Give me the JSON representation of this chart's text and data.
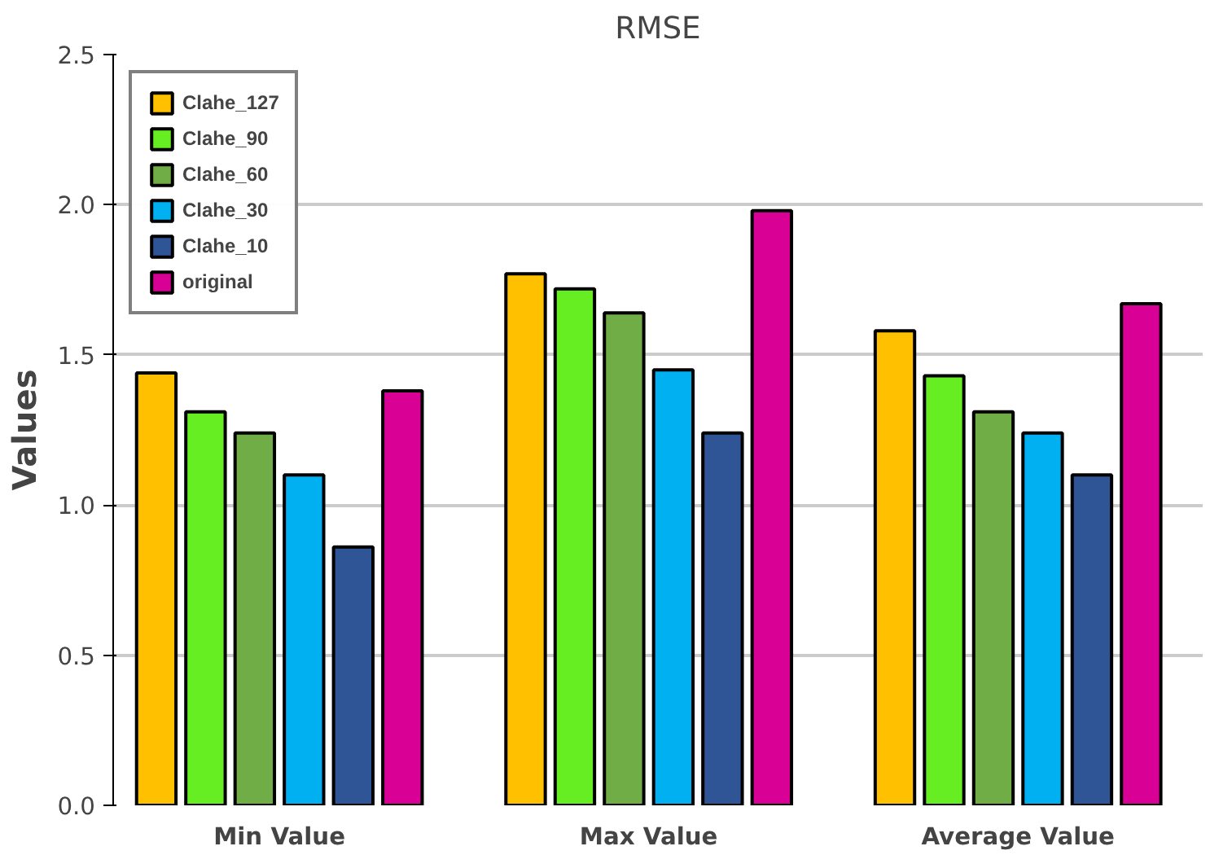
{
  "chart_data": {
    "type": "bar",
    "title": "RMSE",
    "ylabel": "Values",
    "categories": [
      "Min Value",
      "Max Value",
      "Average Value"
    ],
    "series": [
      {
        "name": "Clahe_127",
        "color": "#ffc000",
        "values": [
          1.44,
          1.77,
          1.58
        ]
      },
      {
        "name": "Clahe_90",
        "color": "#66ee22",
        "values": [
          1.31,
          1.72,
          1.43
        ]
      },
      {
        "name": "Clahe_60",
        "color": "#70ad47",
        "values": [
          1.24,
          1.64,
          1.31
        ]
      },
      {
        "name": "Clahe_30",
        "color": "#00b0f0",
        "values": [
          1.1,
          1.45,
          1.24
        ]
      },
      {
        "name": "Clahe_10",
        "color": "#2f5597",
        "values": [
          0.86,
          1.24,
          1.1
        ]
      },
      {
        "name": "original",
        "color": "#d90096",
        "values": [
          1.38,
          1.98,
          1.67
        ]
      }
    ],
    "ylim": [
      0,
      2.5
    ],
    "yticks": [
      {
        "value": 0,
        "label": "0.0"
      },
      0.5,
      {
        "value": 1,
        "label": "1.0"
      },
      1.5,
      {
        "value": 2,
        "label": "2.0"
      },
      2.5
    ],
    "grid": "y",
    "legend": "top left"
  }
}
